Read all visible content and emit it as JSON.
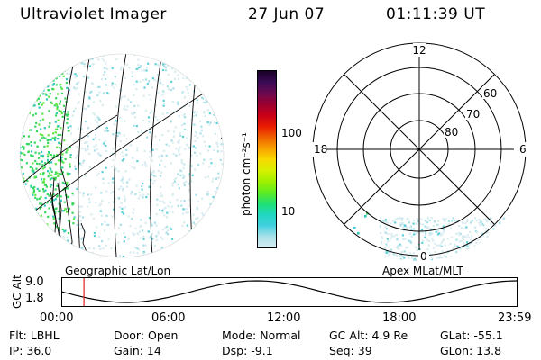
{
  "header": {
    "instrument": "Ultraviolet Imager",
    "date": "27 Jun 07",
    "time": "01:11:39 UT"
  },
  "colorbar": {
    "unit_label": "photon cm⁻²s⁻¹",
    "ticks": [
      {
        "label": "100",
        "value": 100
      },
      {
        "label": "10",
        "value": 10
      }
    ],
    "colors": [
      "#1a0026",
      "#3a0a55",
      "#6a0a50",
      "#9a0030",
      "#c80018",
      "#e81a00",
      "#f06000",
      "#f8a000",
      "#f8d800",
      "#d8f000",
      "#a0f000",
      "#60ec20",
      "#20e070",
      "#20d8c0",
      "#40d0e0",
      "#a8e0e8",
      "#d8ecf0"
    ]
  },
  "left_map": {
    "label": "Geographic Lat/Lon"
  },
  "right_map": {
    "label": "Apex MLat/MLT",
    "mlt_labels": [
      "12",
      "18",
      "6",
      "0"
    ],
    "mlat_labels": [
      "60",
      "70",
      "80"
    ]
  },
  "altitude_plot": {
    "axis_label": "GC Alt",
    "y_ticks": [
      "9.0",
      "1.8"
    ],
    "x_ticks": [
      "00:00",
      "06:00",
      "12:00",
      "18:00",
      "23:59"
    ],
    "current_time_fraction": 0.0497,
    "marker_color": "#e02020"
  },
  "info": {
    "filter": "Flt: LBHL",
    "ip": "IP: 36.0",
    "door": "Door: Open",
    "gain": "Gain: 14",
    "mode": "Mode: Normal",
    "dsp": "Dsp:   -9.1",
    "gc_alt": "GC Alt: 4.9 Re",
    "seq": "Seq: 39",
    "glat": "GLat: -55.1",
    "glon": "GLon:  13.8"
  }
}
